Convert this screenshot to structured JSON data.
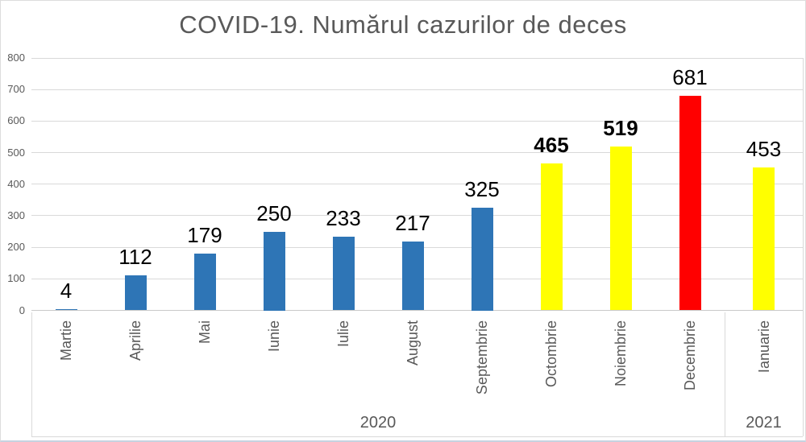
{
  "chart_data": {
    "type": "bar",
    "title": "COVID-19. Numărul cazurilor de deces",
    "categories": [
      "Martie",
      "Aprilie",
      "Mai",
      "Iunie",
      "Iulie",
      "August",
      "Septembrie",
      "Octombrie",
      "Noiembrie",
      "Decembrie",
      "Ianuarie"
    ],
    "values": [
      4,
      112,
      179,
      250,
      233,
      217,
      325,
      465,
      519,
      681,
      453
    ],
    "bar_colors": [
      "#2E75B6",
      "#2E75B6",
      "#2E75B6",
      "#2E75B6",
      "#2E75B6",
      "#2E75B6",
      "#2E75B6",
      "#FFFF00",
      "#FFFF00",
      "#FF0000",
      "#FFFF00"
    ],
    "value_label_bold": [
      false,
      false,
      false,
      false,
      false,
      false,
      false,
      true,
      true,
      false,
      false
    ],
    "year_groups": [
      {
        "label": "2020",
        "months": 10
      },
      {
        "label": "2021",
        "months": 1
      }
    ],
    "xlabel": "",
    "ylabel": "",
    "ylim": [
      0,
      800
    ],
    "yticks": [
      0,
      100,
      200,
      300,
      400,
      500,
      600,
      700,
      800
    ],
    "grid": true,
    "legend_position": "none"
  },
  "colors": {
    "bar_blue": "#2E75B6",
    "bar_yellow": "#FFFF00",
    "bar_red": "#FF0000",
    "title_text": "#595959",
    "axis_text": "#595959",
    "value_label_text": "#000000",
    "gridline": "#D9D9D9",
    "axis_line": "#C9C9C9",
    "frame_border": "#DDDDDD"
  }
}
